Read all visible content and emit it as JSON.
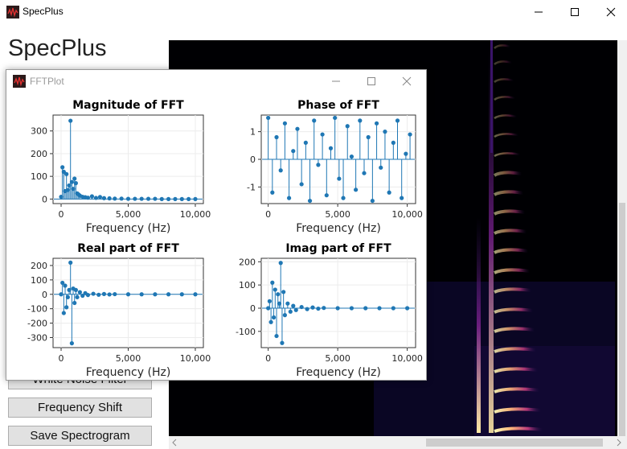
{
  "window": {
    "title": "SpecPlus",
    "minimize": "—",
    "maximize": "☐",
    "close": "✕"
  },
  "app_heading": "SpecPlus",
  "buttons": [
    {
      "label": "White Noise Filter"
    },
    {
      "label": "Frequency Shift"
    },
    {
      "label": "Save Spectrogram"
    }
  ],
  "fft_window": {
    "title": "FFTPlot"
  },
  "chart_data": [
    {
      "type": "stem",
      "title": "Magnitude of FFT",
      "xlabel": "Frequency (Hz)",
      "xlim": [
        -600,
        10600
      ],
      "ylim": [
        -20,
        370
      ],
      "xticks": [
        0,
        5000,
        10000
      ],
      "xtick_labels": [
        "0",
        "5,000",
        "10,000"
      ],
      "yticks": [
        0,
        100,
        200,
        300
      ],
      "ytick_labels": [
        "0",
        "100",
        "200",
        "300"
      ],
      "grid": true,
      "color": "#1f77b4",
      "x": [
        0,
        100,
        200,
        300,
        400,
        500,
        600,
        700,
        800,
        900,
        1000,
        1100,
        1200,
        1300,
        1400,
        1600,
        1800,
        2000,
        2300,
        2600,
        2900,
        3200,
        3600,
        4000,
        4500,
        5000,
        5500,
        6000,
        6500,
        7000,
        7500,
        8000,
        8500,
        9000,
        9500,
        10000
      ],
      "y": [
        10,
        140,
        120,
        35,
        110,
        40,
        60,
        345,
        75,
        45,
        90,
        70,
        25,
        20,
        15,
        10,
        8,
        6,
        12,
        5,
        9,
        4,
        3,
        2,
        2,
        1,
        1,
        1,
        1,
        1,
        0,
        0,
        0,
        0,
        0,
        0
      ]
    },
    {
      "type": "stem",
      "title": "Phase of FFT",
      "xlabel": "Frequency (Hz)",
      "xlim": [
        -500,
        10600
      ],
      "ylim": [
        -1.6,
        1.6
      ],
      "xticks": [
        0,
        5000,
        10000
      ],
      "xtick_labels": [
        "0",
        "5,000",
        "10,000"
      ],
      "yticks": [
        -1,
        0,
        1
      ],
      "ytick_labels": [
        "-1",
        "0",
        "1"
      ],
      "grid": true,
      "color": "#1f77b4",
      "x": [
        0,
        300,
        600,
        900,
        1200,
        1500,
        1800,
        2100,
        2400,
        2700,
        3000,
        3300,
        3600,
        3900,
        4200,
        4500,
        4800,
        5100,
        5400,
        5700,
        6000,
        6300,
        6600,
        6900,
        7200,
        7500,
        7800,
        8100,
        8400,
        8700,
        9000,
        9300,
        9600,
        9900,
        10200
      ],
      "y": [
        1.5,
        -1.2,
        0.8,
        -0.4,
        1.3,
        -1.4,
        0.3,
        1.1,
        -0.9,
        0.6,
        -1.5,
        1.4,
        -0.2,
        0.9,
        -1.3,
        0.4,
        1.5,
        -0.7,
        -1.4,
        1.2,
        0.1,
        -1.1,
        1.4,
        -0.5,
        0.8,
        -1.5,
        1.3,
        -0.3,
        1.0,
        -1.2,
        0.6,
        1.4,
        -1.4,
        0.2,
        0.9
      ]
    },
    {
      "type": "stem",
      "title": "Real part of FFT",
      "xlabel": "Frequency (Hz)",
      "xlim": [
        -600,
        10600
      ],
      "ylim": [
        -370,
        250
      ],
      "xticks": [
        0,
        5000,
        10000
      ],
      "xtick_labels": [
        "0",
        "5,000",
        "10,000"
      ],
      "yticks": [
        -300,
        -200,
        -100,
        0,
        100,
        200
      ],
      "ytick_labels": [
        "-300",
        "-200",
        "-100",
        "0",
        "100",
        "200"
      ],
      "grid": true,
      "color": "#1f77b4",
      "x": [
        0,
        100,
        200,
        300,
        400,
        500,
        600,
        700,
        800,
        900,
        1000,
        1100,
        1200,
        1400,
        1600,
        1800,
        2000,
        2400,
        2800,
        3200,
        3600,
        4000,
        5000,
        6000,
        7000,
        8000,
        9000,
        10000
      ],
      "y": [
        0,
        80,
        -130,
        60,
        -90,
        -20,
        30,
        220,
        -340,
        40,
        -60,
        30,
        -20,
        15,
        -10,
        8,
        -5,
        4,
        -3,
        2,
        -1,
        1,
        0,
        0,
        0,
        0,
        0,
        0
      ]
    },
    {
      "type": "stem",
      "title": "Imag part of FFT",
      "xlabel": "Frequency (Hz)",
      "xlim": [
        -500,
        10600
      ],
      "ylim": [
        -170,
        215
      ],
      "xticks": [
        0,
        5000,
        10000
      ],
      "xtick_labels": [
        "0",
        "5,000",
        "10,000"
      ],
      "yticks": [
        -100,
        0,
        100,
        200
      ],
      "ytick_labels": [
        "-100",
        "0",
        "100",
        "200"
      ],
      "grid": true,
      "color": "#1f77b4",
      "x": [
        0,
        100,
        200,
        300,
        400,
        500,
        600,
        700,
        800,
        900,
        1000,
        1100,
        1200,
        1400,
        1600,
        1800,
        2000,
        2400,
        2800,
        3200,
        3600,
        4000,
        5000,
        6000,
        7000,
        8000,
        9000,
        10000
      ],
      "y": [
        0,
        30,
        -60,
        110,
        -40,
        80,
        -120,
        60,
        20,
        195,
        -150,
        70,
        -30,
        20,
        -15,
        10,
        -8,
        5,
        -4,
        3,
        -2,
        1,
        0,
        0,
        0,
        0,
        0,
        0
      ]
    }
  ]
}
